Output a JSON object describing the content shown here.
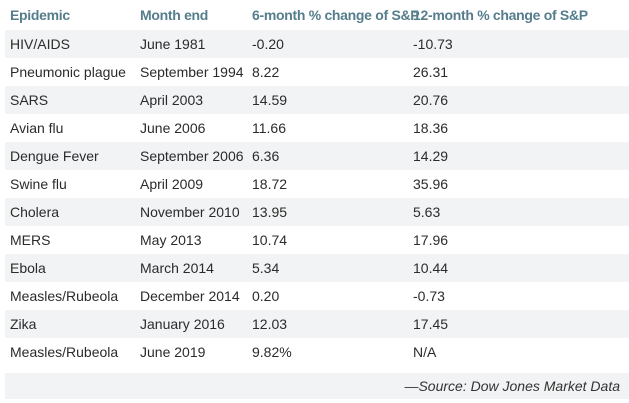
{
  "chart_data": {
    "type": "table",
    "columns": [
      "Epidemic",
      "Month end",
      "6-month % change of S&P",
      "12-month % change of S&P"
    ],
    "rows": [
      [
        "HIV/AIDS",
        "June 1981",
        "-0.20",
        "-10.73"
      ],
      [
        "Pneumonic plague",
        "September 1994",
        "8.22",
        "26.31"
      ],
      [
        "SARS",
        "April 2003",
        "14.59",
        "20.76"
      ],
      [
        "Avian flu",
        "June 2006",
        "11.66",
        "18.36"
      ],
      [
        "Dengue Fever",
        "September 2006",
        "6.36",
        "14.29"
      ],
      [
        "Swine flu",
        "April 2009",
        "18.72",
        "35.96"
      ],
      [
        "Cholera",
        "November 2010",
        "13.95",
        "5.63"
      ],
      [
        "MERS",
        "May 2013",
        "10.74",
        "17.96"
      ],
      [
        "Ebola",
        "March 2014",
        "5.34",
        "10.44"
      ],
      [
        "Measles/Rubeola",
        "December 2014",
        "0.20",
        "-0.73"
      ],
      [
        "Zika",
        "January 2016",
        "12.03",
        "17.45"
      ],
      [
        "Measles/Rubeola",
        "June 2019",
        "9.82%",
        "N/A"
      ]
    ],
    "source_note": "—Source: Dow Jones Market Data",
    "layout": {
      "legend": "none",
      "grid": "off",
      "row_striping": "alternating, first data row shaded"
    }
  },
  "colors": {
    "header_text": "#557d8c",
    "body_text": "#2b2b2b",
    "row_alt_bg": "#f2f3f4",
    "row_bg": "#ffffff",
    "source_text": "#333333"
  }
}
